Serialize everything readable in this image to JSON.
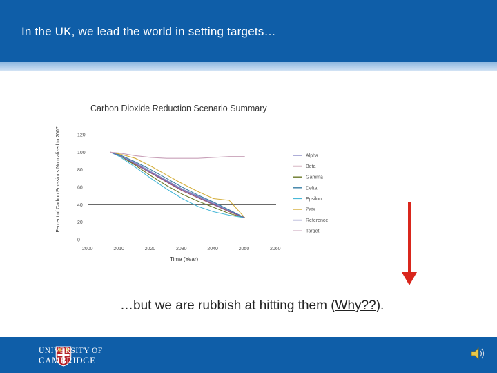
{
  "slide": {
    "title": "In the UK, we lead the world in setting targets…",
    "caption_pre": "…but we are rubbish at hitting them (",
    "caption_why": "Why??",
    "caption_post": ").",
    "footer_logo_line1": "UNIVERSITY OF",
    "footer_logo_line2": "CAMBRIDGE",
    "colors": {
      "header": "#0f5ea8",
      "arrow": "#d9261c"
    }
  },
  "chart_data": {
    "type": "line",
    "title": "Carbon Dioxide Reduction Scenario Summary",
    "xlabel": "Time (Year)",
    "ylabel": "Percent of Carbon Emissions Normalized to 2007",
    "xlim": [
      2000,
      2060
    ],
    "ylim": [
      0,
      120
    ],
    "xticks": [
      2000,
      2010,
      2020,
      2030,
      2040,
      2050,
      2060
    ],
    "yticks": [
      0,
      20,
      40,
      60,
      80,
      100,
      120
    ],
    "reference_line": {
      "y": 40
    },
    "legend_position": "right",
    "series": [
      {
        "name": "Alpha",
        "color": "#8c8cc8",
        "x": [
          2007,
          2010,
          2015,
          2020,
          2025,
          2030,
          2035,
          2040,
          2045,
          2050
        ],
        "y": [
          100,
          97,
          88,
          78,
          68,
          58,
          50,
          42,
          34,
          25
        ]
      },
      {
        "name": "Beta",
        "color": "#9b4a6a",
        "x": [
          2007,
          2010,
          2015,
          2020,
          2025,
          2030,
          2035,
          2040,
          2045,
          2050
        ],
        "y": [
          100,
          96,
          86,
          76,
          66,
          56,
          48,
          40,
          32,
          25
        ]
      },
      {
        "name": "Gamma",
        "color": "#6b7a2a",
        "x": [
          2007,
          2010,
          2015,
          2020,
          2025,
          2030,
          2035,
          2040,
          2045,
          2050
        ],
        "y": [
          100,
          96,
          85,
          73,
          62,
          52,
          44,
          37,
          30,
          25
        ]
      },
      {
        "name": "Delta",
        "color": "#3a7fa6",
        "x": [
          2007,
          2010,
          2015,
          2020,
          2025,
          2030,
          2035,
          2040,
          2045,
          2050
        ],
        "y": [
          100,
          97,
          89,
          80,
          70,
          60,
          51,
          43,
          34,
          25
        ]
      },
      {
        "name": "Epsilon",
        "color": "#48b8d8",
        "x": [
          2007,
          2010,
          2015,
          2020,
          2025,
          2030,
          2035,
          2040,
          2045,
          2050
        ],
        "y": [
          100,
          95,
          83,
          70,
          58,
          47,
          38,
          32,
          28,
          25
        ]
      },
      {
        "name": "Zeta",
        "color": "#d4ae3a",
        "x": [
          2007,
          2010,
          2015,
          2020,
          2025,
          2030,
          2035,
          2040,
          2045,
          2050
        ],
        "y": [
          100,
          98,
          93,
          84,
          74,
          64,
          55,
          47,
          45,
          25
        ]
      },
      {
        "name": "Reference",
        "color": "#6a6ab0",
        "x": [
          2007,
          2010,
          2015,
          2020,
          2025,
          2030,
          2035,
          2040,
          2045,
          2050
        ],
        "y": [
          100,
          96,
          87,
          77,
          67,
          57,
          49,
          41,
          33,
          25
        ]
      },
      {
        "name": "Target",
        "color": "#c8a0b8",
        "x": [
          2007,
          2010,
          2015,
          2020,
          2025,
          2030,
          2035,
          2040,
          2045,
          2050
        ],
        "y": [
          100,
          99,
          96,
          94,
          93,
          93,
          93,
          94,
          95,
          95
        ]
      }
    ]
  }
}
